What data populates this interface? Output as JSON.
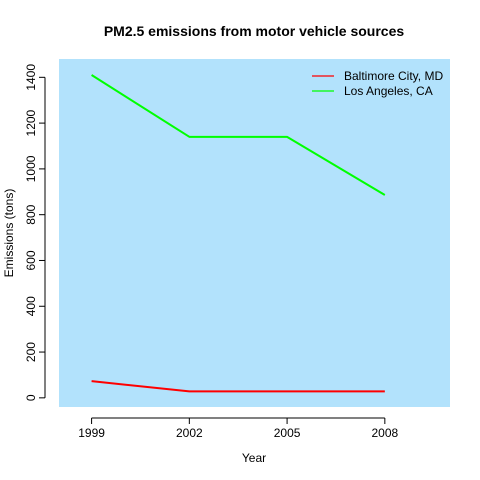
{
  "chart_data": {
    "type": "line",
    "title": "PM2.5 emissions from motor vehicle sources",
    "xlabel": "Year",
    "ylabel": "Emissions (tons)",
    "x": [
      1999,
      2002,
      2005,
      2008
    ],
    "xlim": [
      1998,
      2010
    ],
    "ylim": [
      -40,
      1480
    ],
    "yticks": [
      0,
      200,
      400,
      600,
      800,
      1000,
      1200,
      1400
    ],
    "plot_background": "#b2e2fc",
    "grid": false,
    "legend_position": "top-right",
    "series": [
      {
        "name": "Baltimore City, MD",
        "color": "#ff0000",
        "values": [
          73,
          28,
          28,
          28
        ]
      },
      {
        "name": "Los Angeles, CA",
        "color": "#00ff00",
        "values": [
          1410,
          1140,
          1140,
          886
        ]
      }
    ]
  }
}
